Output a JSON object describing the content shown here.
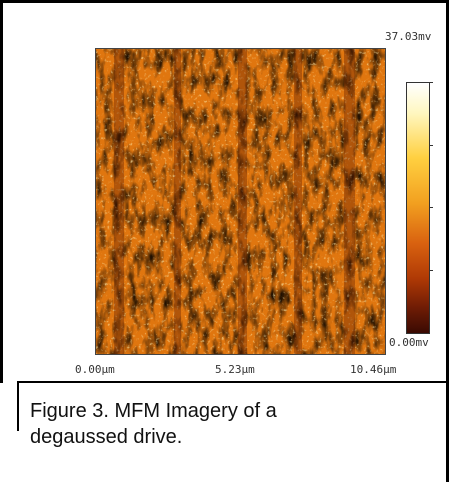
{
  "figure": {
    "colorbar": {
      "max_label": "37.03mv",
      "min_label": "0.00mv"
    },
    "x_axis": {
      "ticks": [
        "0.00µm",
        "5.23µm",
        "10.46µm"
      ]
    },
    "caption": {
      "line1": "Figure 3.  MFM Imagery of a",
      "line2": "degaussed drive."
    }
  },
  "colors": {
    "scan_base": "#e0760f",
    "scan_dark": "#7a2a05",
    "scan_light": "#ffe070",
    "frame": "#000000"
  }
}
